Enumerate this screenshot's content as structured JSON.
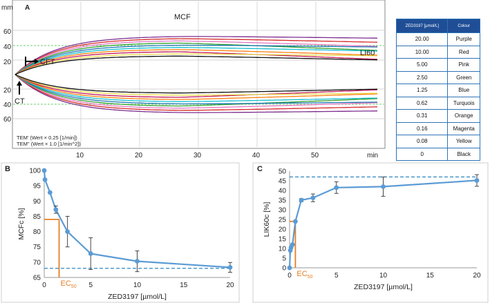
{
  "panelA": {
    "label": "A",
    "y_unit": "mm",
    "y_ticks_top": [
      "60",
      "40",
      "20"
    ],
    "y_ticks_bottom": [
      "20",
      "40",
      "60"
    ],
    "x_ticks": [
      "10",
      "20",
      "30",
      "40",
      "50",
      "min"
    ],
    "mcf_label": "MCF",
    "li60_label": "LI60",
    "cft_label": "CFT",
    "ct_label": "CT",
    "tem1": "TEM' (Wert × 0.25 [1/min])",
    "tem2": "TEM'' (Wert × 1.0 [1/min^2])",
    "trace_colors": [
      "#7b2d8e",
      "#d62728",
      "#e377c2",
      "#2ca02c",
      "#1f77b4",
      "#17becf",
      "#ff7f0e",
      "#c2185b",
      "#e8d84a",
      "#111111"
    ]
  },
  "legend": {
    "header": [
      "ZED3197 [µmol/L]",
      "Colour"
    ],
    "rows": [
      [
        "20.00",
        "Purple"
      ],
      [
        "10.00",
        "Red"
      ],
      [
        "5.00",
        "Pink"
      ],
      [
        "2.50",
        "Green"
      ],
      [
        "1.25",
        "Blue"
      ],
      [
        "0.62",
        "Turquois"
      ],
      [
        "0.31",
        "Orange"
      ],
      [
        "0.16",
        "Magenta"
      ],
      [
        "0.08",
        "Yellow"
      ],
      [
        "0",
        "Black"
      ]
    ]
  },
  "chart_data": [
    {
      "panel": "B",
      "type": "line",
      "xlabel": "ZED3197 [µmol/L]",
      "ylabel": "MCFc [%]",
      "xlim": [
        0,
        20
      ],
      "ylim": [
        65,
        100
      ],
      "x_ticks": [
        0,
        5,
        10,
        15,
        20
      ],
      "y_ticks": [
        65,
        70,
        75,
        80,
        85,
        90,
        95,
        100
      ],
      "x": [
        0,
        0.08,
        0.62,
        1.25,
        2.5,
        5,
        10,
        20
      ],
      "y": [
        100,
        97,
        92.8,
        87.2,
        80,
        72.8,
        70.3,
        68.3
      ],
      "err": [
        0,
        0,
        0,
        1.2,
        5,
        5.2,
        3.4,
        1.6
      ],
      "asymptote": 68,
      "ec50_x": 1.6,
      "ec50_y": 84,
      "ec50_label": "EC",
      "ec50_sub": "50"
    },
    {
      "panel": "C",
      "type": "line",
      "xlabel": "ZED3197 [µmol/L]",
      "ylabel": "LIK60c [%]",
      "xlim": [
        0,
        20
      ],
      "ylim": [
        0,
        50
      ],
      "x_ticks": [
        0,
        5,
        10,
        15,
        20
      ],
      "y_ticks": [
        0,
        5,
        10,
        15,
        20,
        25,
        30,
        35,
        40,
        45,
        50
      ],
      "x": [
        0,
        0.08,
        0.16,
        0.31,
        0.62,
        1.25,
        2.5,
        5,
        10,
        20
      ],
      "y": [
        0,
        9,
        10.5,
        12,
        24,
        35,
        36.2,
        41.5,
        42,
        45.2
      ],
      "err": [
        0,
        0,
        0,
        0,
        0,
        0.8,
        2,
        3,
        5,
        3
      ],
      "asymptote": 47,
      "ec50_x": 0.62,
      "ec50_y": 24,
      "ec50_label": "EC",
      "ec50_sub": "50"
    }
  ]
}
